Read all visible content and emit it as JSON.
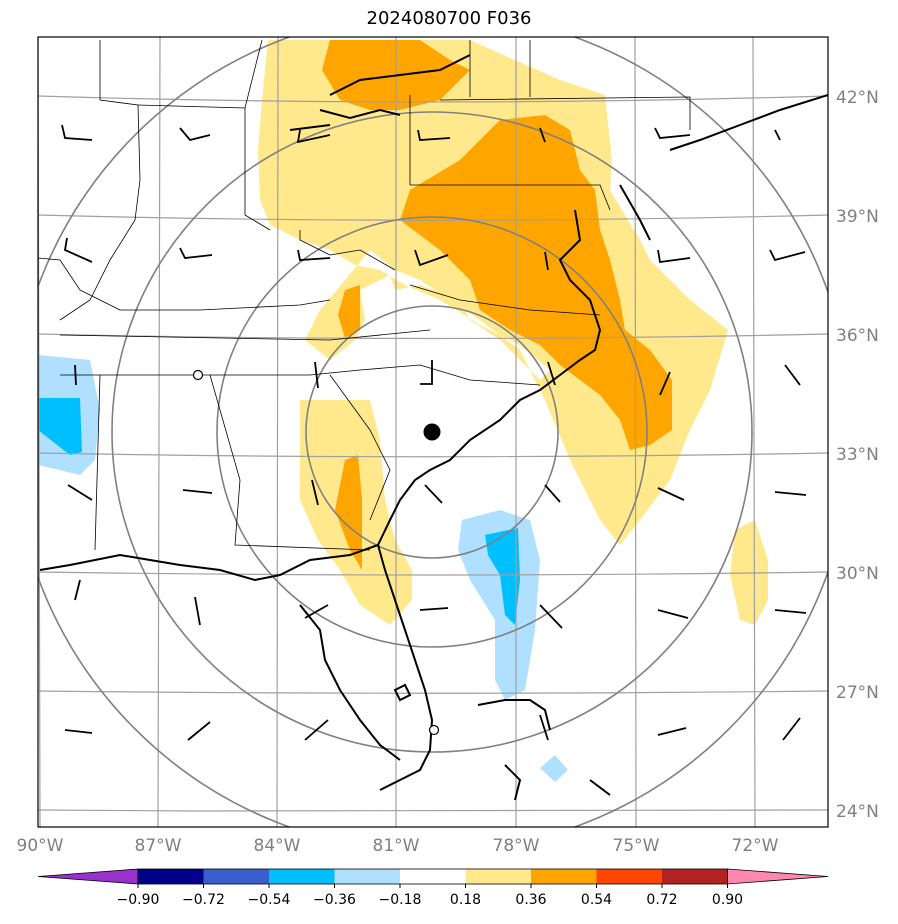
{
  "title": "2024080700 F036",
  "map": {
    "projection": "lambert-conformal",
    "lat_labels": [
      "42°N",
      "39°N",
      "36°N",
      "33°N",
      "30°N",
      "27°N",
      "24°N"
    ],
    "lon_labels": [
      "90°W",
      "87°W",
      "84°W",
      "81°W",
      "78°W",
      "75°W",
      "72°W"
    ],
    "center_marker": "storm-center-dot",
    "range_rings": 4,
    "wind_barbs": true
  },
  "colorbar": {
    "ticks": [
      "−0.90",
      "−0.72",
      "−0.54",
      "−0.36",
      "−0.18",
      "0.18",
      "0.36",
      "0.54",
      "0.72",
      "0.90"
    ],
    "colors": [
      "#9932cc",
      "#00008b",
      "#3a5fcd",
      "#00bfff",
      "#b0e0ff",
      "#ffffff",
      "#ffe98c",
      "#ffa500",
      "#ff4500",
      "#b22222",
      "#ff88b0"
    ]
  }
}
